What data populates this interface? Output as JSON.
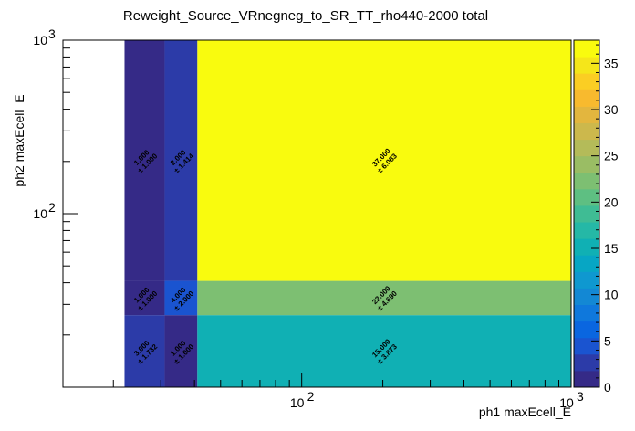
{
  "chart_data": {
    "type": "heatmap",
    "title": "Reweight_Source_VRnegneg_to_SR_TT_rho440-2000 total",
    "xlabel": "ph1 maxEcell_E",
    "ylabel": "ph2 maxEcell_E",
    "x_scale": "log",
    "y_scale": "log",
    "xlim": [
      13,
      1000
    ],
    "ylim": [
      10,
      1000
    ],
    "x_edges": [
      22,
      31,
      41,
      1000
    ],
    "y_edges": [
      10,
      26,
      41,
      1000
    ],
    "x_major_ticks": [
      {
        "value": 100,
        "label": "10",
        "exp": "2"
      },
      {
        "value": 1000,
        "label": "10",
        "exp": "3"
      }
    ],
    "y_major_ticks": [
      {
        "value": 100,
        "label": "10",
        "exp": "2"
      },
      {
        "value": 1000,
        "label": "10",
        "exp": "3"
      }
    ],
    "cells": [
      {
        "xbin": 0,
        "ybin": 0,
        "value": 3.0,
        "value_label": "3.000",
        "error_label": "± 1.732"
      },
      {
        "xbin": 1,
        "ybin": 0,
        "value": 1.0,
        "value_label": "1.000",
        "error_label": "± 1.000"
      },
      {
        "xbin": 2,
        "ybin": 0,
        "value": 15.0,
        "value_label": "15.000",
        "error_label": "± 3.873"
      },
      {
        "xbin": 0,
        "ybin": 1,
        "value": 1.0,
        "value_label": "1.000",
        "error_label": "± 1.000"
      },
      {
        "xbin": 1,
        "ybin": 1,
        "value": 4.0,
        "value_label": "4.000",
        "error_label": "± 2.000"
      },
      {
        "xbin": 2,
        "ybin": 1,
        "value": 22.0,
        "value_label": "22.000",
        "error_label": "± 4.690"
      },
      {
        "xbin": 0,
        "ybin": 2,
        "value": 1.0,
        "value_label": "1.000",
        "error_label": "± 1.000"
      },
      {
        "xbin": 1,
        "ybin": 2,
        "value": 2.0,
        "value_label": "2.000",
        "error_label": "± 1.414"
      },
      {
        "xbin": 2,
        "ybin": 2,
        "value": 37.0,
        "value_label": "37.000",
        "error_label": "± 6.083"
      }
    ],
    "zlim": [
      0,
      37.5
    ],
    "color_ticks": [
      {
        "value": 0,
        "label": "0"
      },
      {
        "value": 5,
        "label": "5"
      },
      {
        "value": 10,
        "label": "10"
      },
      {
        "value": 15,
        "label": "15"
      },
      {
        "value": 20,
        "label": "20"
      },
      {
        "value": 25,
        "label": "25"
      },
      {
        "value": 30,
        "label": "30"
      },
      {
        "value": 35,
        "label": "35"
      }
    ],
    "palette": [
      "#352a87",
      "#2c3ba8",
      "#1a54d0",
      "#0a66e0",
      "#0f78dc",
      "#1388d4",
      "#0f98d0",
      "#07a6c4",
      "#10b0b4",
      "#25b8a6",
      "#3fbc94",
      "#5ebf82",
      "#7dbf72",
      "#9abd64",
      "#b4bb59",
      "#ccb84c",
      "#e3b63e",
      "#f8ba2e",
      "#fbce23",
      "#f5e61a",
      "#f9fb0e"
    ],
    "grid": false,
    "legend": "none"
  }
}
